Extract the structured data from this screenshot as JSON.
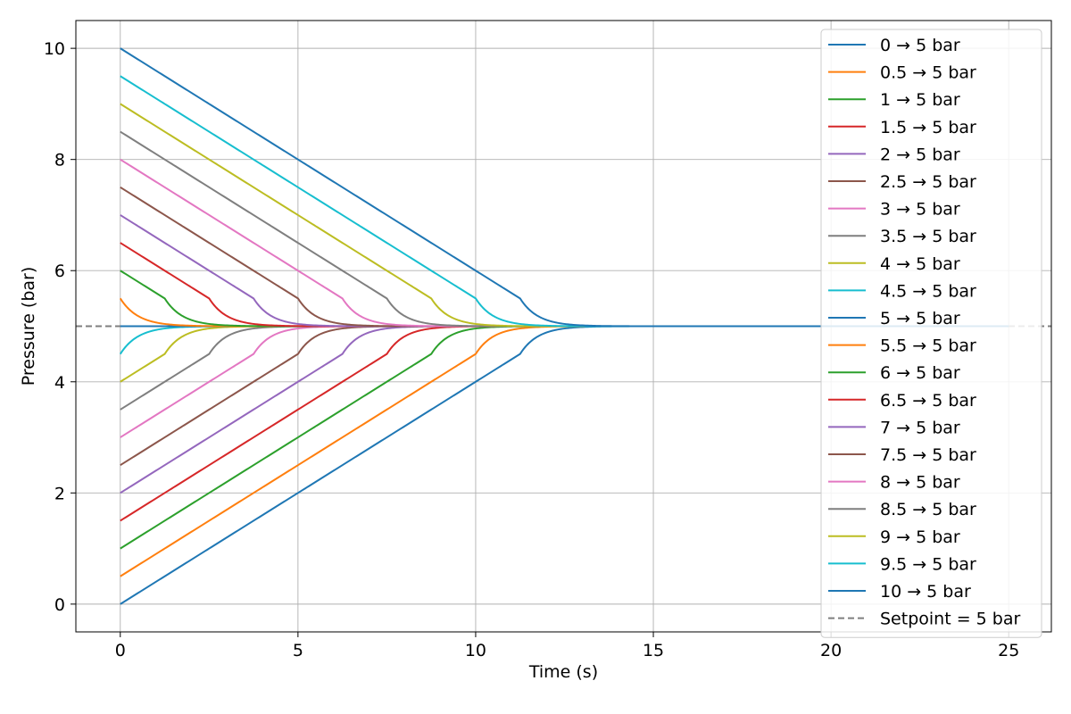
{
  "chart_data": {
    "type": "line",
    "title": "",
    "xlabel": "Time (s)",
    "ylabel": "Pressure (bar)",
    "xlim": [
      -1.25,
      26.2
    ],
    "ylim": [
      -0.5,
      10.5
    ],
    "xticks": [
      0,
      5,
      10,
      15,
      20,
      25
    ],
    "yticks": [
      0,
      2,
      4,
      6,
      8,
      10
    ],
    "grid": true,
    "legend_position": "right",
    "setpoint": {
      "name": "Setpoint = 5 bar",
      "value": 5,
      "color": "#7f7f7f",
      "style": "dashed"
    },
    "series": [
      {
        "name": "0 → 5 bar",
        "start": 0,
        "color": "#1f77b4"
      },
      {
        "name": "0.5 → 5 bar",
        "start": 0.5,
        "color": "#ff7f0e"
      },
      {
        "name": "1 → 5 bar",
        "start": 1,
        "color": "#2ca02c"
      },
      {
        "name": "1.5 → 5 bar",
        "start": 1.5,
        "color": "#d62728"
      },
      {
        "name": "2 → 5 bar",
        "start": 2,
        "color": "#9467bd"
      },
      {
        "name": "2.5 → 5 bar",
        "start": 2.5,
        "color": "#8c564b"
      },
      {
        "name": "3 → 5 bar",
        "start": 3,
        "color": "#e377c2"
      },
      {
        "name": "3.5 → 5 bar",
        "start": 3.5,
        "color": "#7f7f7f"
      },
      {
        "name": "4 → 5 bar",
        "start": 4,
        "color": "#bcbd22"
      },
      {
        "name": "4.5 → 5 bar",
        "start": 4.5,
        "color": "#17becf"
      },
      {
        "name": "5 → 5 bar",
        "start": 5,
        "color": "#1f77b4"
      },
      {
        "name": "5.5 → 5 bar",
        "start": 5.5,
        "color": "#ff7f0e"
      },
      {
        "name": "6 → 5 bar",
        "start": 6,
        "color": "#2ca02c"
      },
      {
        "name": "6.5 → 5 bar",
        "start": 6.5,
        "color": "#d62728"
      },
      {
        "name": "7 → 5 bar",
        "start": 7,
        "color": "#9467bd"
      },
      {
        "name": "7.5 → 5 bar",
        "start": 7.5,
        "color": "#8c564b"
      },
      {
        "name": "8 → 5 bar",
        "start": 8,
        "color": "#e377c2"
      },
      {
        "name": "8.5 → 5 bar",
        "start": 8.5,
        "color": "#7f7f7f"
      },
      {
        "name": "9 → 5 bar",
        "start": 9,
        "color": "#bcbd22"
      },
      {
        "name": "9.5 → 5 bar",
        "start": 9.5,
        "color": "#17becf"
      },
      {
        "name": "10 → 5 bar",
        "start": 10,
        "color": "#1f77b4"
      }
    ]
  }
}
